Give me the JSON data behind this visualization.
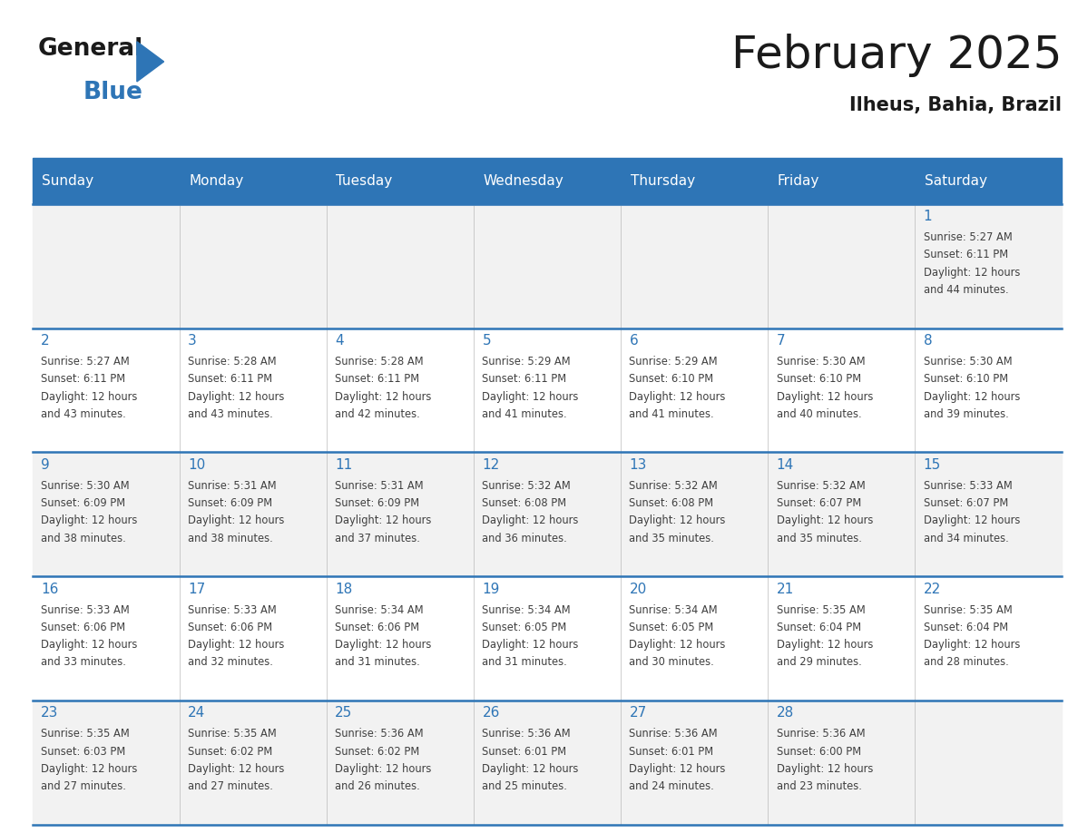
{
  "title": "February 2025",
  "subtitle": "Ilheus, Bahia, Brazil",
  "header_bg": "#2E75B6",
  "header_text_color": "#FFFFFF",
  "day_names": [
    "Sunday",
    "Monday",
    "Tuesday",
    "Wednesday",
    "Thursday",
    "Friday",
    "Saturday"
  ],
  "background_color": "#FFFFFF",
  "cell_bg_odd": "#F2F2F2",
  "cell_bg_even": "#FFFFFF",
  "separator_color": "#2E75B6",
  "day_number_color": "#2E75B6",
  "text_color": "#404040",
  "calendar": [
    [
      null,
      null,
      null,
      null,
      null,
      null,
      1
    ],
    [
      2,
      3,
      4,
      5,
      6,
      7,
      8
    ],
    [
      9,
      10,
      11,
      12,
      13,
      14,
      15
    ],
    [
      16,
      17,
      18,
      19,
      20,
      21,
      22
    ],
    [
      23,
      24,
      25,
      26,
      27,
      28,
      null
    ]
  ],
  "cell_data": {
    "1": {
      "sunrise": "5:27 AM",
      "sunset": "6:11 PM",
      "daylight_h": "12 hours",
      "daylight_m": "44 minutes."
    },
    "2": {
      "sunrise": "5:27 AM",
      "sunset": "6:11 PM",
      "daylight_h": "12 hours",
      "daylight_m": "43 minutes."
    },
    "3": {
      "sunrise": "5:28 AM",
      "sunset": "6:11 PM",
      "daylight_h": "12 hours",
      "daylight_m": "43 minutes."
    },
    "4": {
      "sunrise": "5:28 AM",
      "sunset": "6:11 PM",
      "daylight_h": "12 hours",
      "daylight_m": "42 minutes."
    },
    "5": {
      "sunrise": "5:29 AM",
      "sunset": "6:11 PM",
      "daylight_h": "12 hours",
      "daylight_m": "41 minutes."
    },
    "6": {
      "sunrise": "5:29 AM",
      "sunset": "6:10 PM",
      "daylight_h": "12 hours",
      "daylight_m": "41 minutes."
    },
    "7": {
      "sunrise": "5:30 AM",
      "sunset": "6:10 PM",
      "daylight_h": "12 hours",
      "daylight_m": "40 minutes."
    },
    "8": {
      "sunrise": "5:30 AM",
      "sunset": "6:10 PM",
      "daylight_h": "12 hours",
      "daylight_m": "39 minutes."
    },
    "9": {
      "sunrise": "5:30 AM",
      "sunset": "6:09 PM",
      "daylight_h": "12 hours",
      "daylight_m": "38 minutes."
    },
    "10": {
      "sunrise": "5:31 AM",
      "sunset": "6:09 PM",
      "daylight_h": "12 hours",
      "daylight_m": "38 minutes."
    },
    "11": {
      "sunrise": "5:31 AM",
      "sunset": "6:09 PM",
      "daylight_h": "12 hours",
      "daylight_m": "37 minutes."
    },
    "12": {
      "sunrise": "5:32 AM",
      "sunset": "6:08 PM",
      "daylight_h": "12 hours",
      "daylight_m": "36 minutes."
    },
    "13": {
      "sunrise": "5:32 AM",
      "sunset": "6:08 PM",
      "daylight_h": "12 hours",
      "daylight_m": "35 minutes."
    },
    "14": {
      "sunrise": "5:32 AM",
      "sunset": "6:07 PM",
      "daylight_h": "12 hours",
      "daylight_m": "35 minutes."
    },
    "15": {
      "sunrise": "5:33 AM",
      "sunset": "6:07 PM",
      "daylight_h": "12 hours",
      "daylight_m": "34 minutes."
    },
    "16": {
      "sunrise": "5:33 AM",
      "sunset": "6:06 PM",
      "daylight_h": "12 hours",
      "daylight_m": "33 minutes."
    },
    "17": {
      "sunrise": "5:33 AM",
      "sunset": "6:06 PM",
      "daylight_h": "12 hours",
      "daylight_m": "32 minutes."
    },
    "18": {
      "sunrise": "5:34 AM",
      "sunset": "6:06 PM",
      "daylight_h": "12 hours",
      "daylight_m": "31 minutes."
    },
    "19": {
      "sunrise": "5:34 AM",
      "sunset": "6:05 PM",
      "daylight_h": "12 hours",
      "daylight_m": "31 minutes."
    },
    "20": {
      "sunrise": "5:34 AM",
      "sunset": "6:05 PM",
      "daylight_h": "12 hours",
      "daylight_m": "30 minutes."
    },
    "21": {
      "sunrise": "5:35 AM",
      "sunset": "6:04 PM",
      "daylight_h": "12 hours",
      "daylight_m": "29 minutes."
    },
    "22": {
      "sunrise": "5:35 AM",
      "sunset": "6:04 PM",
      "daylight_h": "12 hours",
      "daylight_m": "28 minutes."
    },
    "23": {
      "sunrise": "5:35 AM",
      "sunset": "6:03 PM",
      "daylight_h": "12 hours",
      "daylight_m": "27 minutes."
    },
    "24": {
      "sunrise": "5:35 AM",
      "sunset": "6:02 PM",
      "daylight_h": "12 hours",
      "daylight_m": "27 minutes."
    },
    "25": {
      "sunrise": "5:36 AM",
      "sunset": "6:02 PM",
      "daylight_h": "12 hours",
      "daylight_m": "26 minutes."
    },
    "26": {
      "sunrise": "5:36 AM",
      "sunset": "6:01 PM",
      "daylight_h": "12 hours",
      "daylight_m": "25 minutes."
    },
    "27": {
      "sunrise": "5:36 AM",
      "sunset": "6:01 PM",
      "daylight_h": "12 hours",
      "daylight_m": "24 minutes."
    },
    "28": {
      "sunrise": "5:36 AM",
      "sunset": "6:00 PM",
      "daylight_h": "12 hours",
      "daylight_m": "23 minutes."
    }
  }
}
